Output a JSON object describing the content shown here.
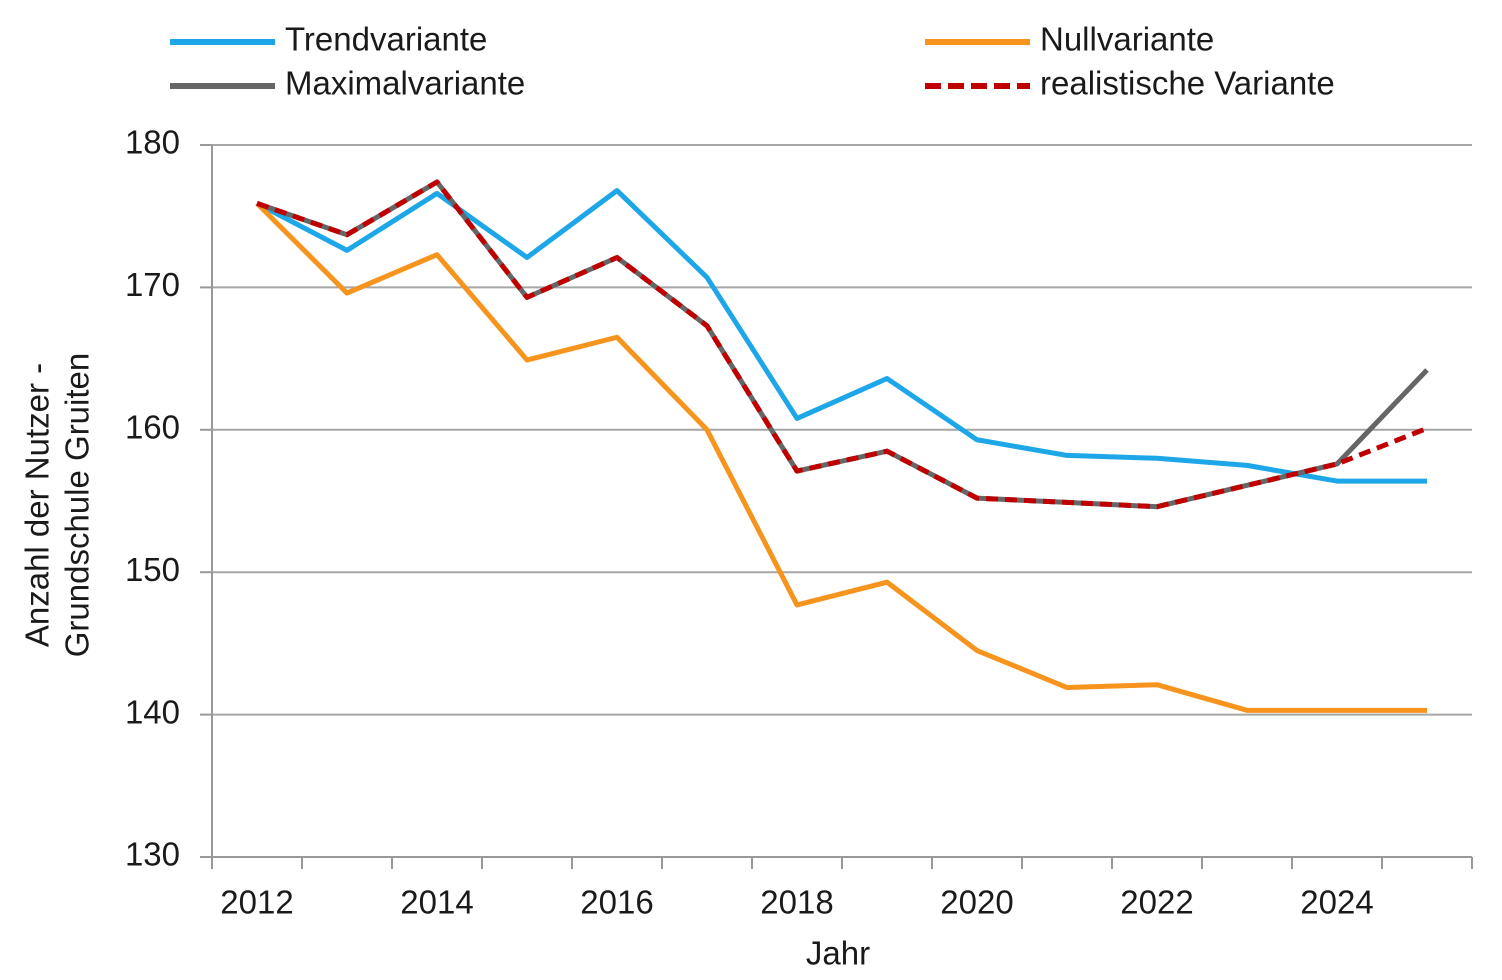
{
  "chart_data": {
    "type": "line",
    "x_label": "Jahr",
    "y_label": [
      "Anzahl der Nutzer -",
      "Grundschule Gruiten"
    ],
    "categories": [
      "2012",
      null,
      "2014",
      null,
      "2016",
      null,
      "2018",
      null,
      "2020",
      null,
      "2022",
      null,
      "2024",
      null
    ],
    "ylim": [
      130,
      180
    ],
    "yticks": [
      130,
      140,
      150,
      160,
      170,
      180
    ],
    "grid": true,
    "legend": "top",
    "series": [
      {
        "name": "Trendvariante",
        "color": "#1ea7e8",
        "values": [
          175.9,
          172.6,
          176.6,
          172.1,
          176.8,
          170.7,
          160.8,
          163.6,
          159.3,
          158.2,
          158.0,
          157.5,
          156.4,
          156.4
        ]
      },
      {
        "name": "Nullvariante",
        "color": "#f7941d",
        "values": [
          175.9,
          169.6,
          172.3,
          164.9,
          166.5,
          160.0,
          147.7,
          149.3,
          144.5,
          141.9,
          142.1,
          140.3,
          140.3,
          140.3
        ]
      },
      {
        "name": "Maximalvariante",
        "color": "#666666",
        "values": [
          175.9,
          173.7,
          177.4,
          169.3,
          172.1,
          167.3,
          157.1,
          158.5,
          155.2,
          154.9,
          154.6,
          156.1,
          157.6,
          164.2
        ]
      },
      {
        "name": "realistische Variante",
        "color": "#c00000",
        "dashed": true,
        "values": [
          175.9,
          173.7,
          177.4,
          169.3,
          172.1,
          167.3,
          157.1,
          158.5,
          155.2,
          154.9,
          154.6,
          156.1,
          157.6,
          160.1
        ]
      }
    ]
  }
}
